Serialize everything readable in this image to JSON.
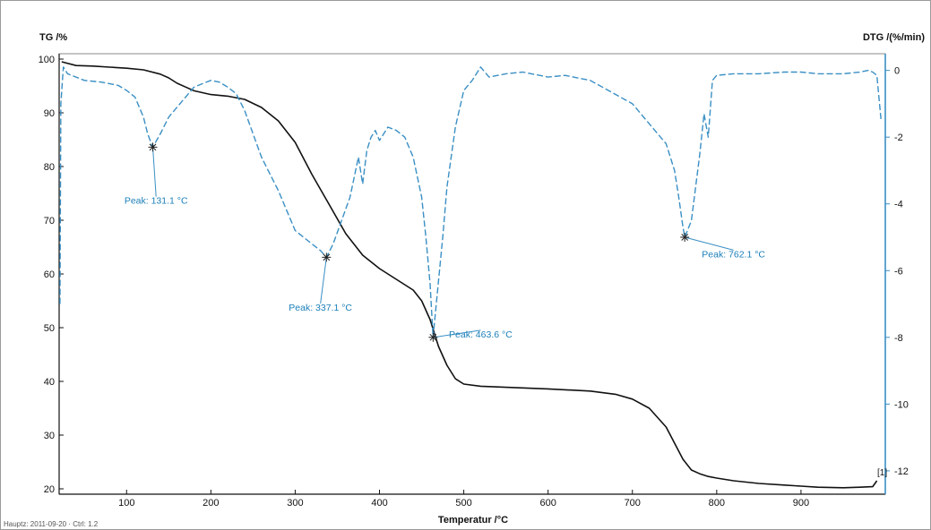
{
  "chart_data": {
    "type": "line",
    "title": "",
    "xlabel": "Temperatur /°C",
    "ylabel_left": "TG /%",
    "ylabel_right": "DTG /(%/min)",
    "xlim": [
      20,
      1000
    ],
    "ylim_left": [
      19,
      101
    ],
    "ylim_right": [
      -12.7,
      0.5
    ],
    "x_ticks": [
      100,
      200,
      300,
      400,
      500,
      600,
      700,
      800,
      900
    ],
    "y_left_ticks": [
      20,
      30,
      40,
      50,
      60,
      70,
      80,
      90,
      100
    ],
    "y_right_ticks": [
      0,
      -2,
      -4,
      -6,
      -8,
      -10,
      -12
    ],
    "grid": false,
    "corner_marker": "[1]",
    "colors": {
      "tg": "#111111",
      "dtg": "#3a8fc4",
      "peak_label": "#1b7fb8"
    },
    "series": [
      {
        "axis": "left",
        "style": "solid",
        "x": [
          23,
          40,
          60,
          80,
          100,
          120,
          140,
          150,
          160,
          170,
          180,
          200,
          220,
          240,
          260,
          280,
          300,
          320,
          340,
          360,
          380,
          400,
          420,
          440,
          450,
          460,
          470,
          480,
          490,
          500,
          520,
          550,
          600,
          650,
          680,
          700,
          720,
          740,
          750,
          760,
          770,
          780,
          790,
          800,
          820,
          850,
          880,
          900,
          920,
          950,
          970,
          985,
          990
        ],
        "values": [
          99.5,
          98.8,
          98.7,
          98.5,
          98.3,
          98.0,
          97.2,
          96.5,
          95.5,
          94.8,
          94.1,
          93.4,
          93.1,
          92.5,
          91.0,
          88.5,
          84.5,
          78.5,
          73.0,
          67.5,
          63.5,
          61.0,
          59.0,
          57.0,
          55.0,
          51.5,
          46.5,
          43.0,
          40.5,
          39.5,
          39.1,
          38.9,
          38.6,
          38.2,
          37.6,
          36.7,
          35.0,
          31.5,
          28.5,
          25.5,
          23.5,
          22.8,
          22.3,
          22.0,
          21.5,
          21.0,
          20.7,
          20.5,
          20.3,
          20.2,
          20.3,
          20.4,
          21.5
        ]
      },
      {
        "axis": "right",
        "style": "dashed",
        "x": [
          21,
          22,
          25,
          30,
          50,
          70,
          90,
          100,
          110,
          120,
          125,
          131.1,
          140,
          150,
          160,
          170,
          180,
          190,
          200,
          210,
          220,
          230,
          240,
          250,
          260,
          270,
          280,
          290,
          300,
          310,
          320,
          330,
          337.1,
          345,
          355,
          365,
          375,
          380,
          385,
          390,
          395,
          400,
          405,
          410,
          420,
          430,
          440,
          450,
          455,
          460,
          463.6,
          470,
          475,
          480,
          490,
          500,
          510,
          520,
          530,
          550,
          570,
          600,
          620,
          650,
          700,
          720,
          740,
          750,
          755,
          760,
          762.1,
          770,
          775,
          780,
          785,
          790,
          795,
          800,
          820,
          850,
          880,
          900,
          920,
          950,
          970,
          980,
          985,
          990,
          995
        ],
        "values": [
          -7.0,
          -1.0,
          0.1,
          -0.1,
          -0.3,
          -0.35,
          -0.45,
          -0.6,
          -0.8,
          -1.4,
          -1.9,
          -2.3,
          -1.9,
          -1.4,
          -1.1,
          -0.8,
          -0.5,
          -0.4,
          -0.3,
          -0.35,
          -0.5,
          -0.7,
          -1.2,
          -1.9,
          -2.6,
          -3.1,
          -3.6,
          -4.2,
          -4.8,
          -5.0,
          -5.2,
          -5.4,
          -5.6,
          -5.2,
          -4.5,
          -3.8,
          -2.6,
          -3.4,
          -2.4,
          -2.0,
          -1.8,
          -2.1,
          -1.9,
          -1.7,
          -1.8,
          -2.0,
          -2.6,
          -3.8,
          -5.0,
          -6.4,
          -8.0,
          -6.3,
          -5.0,
          -3.5,
          -1.7,
          -0.6,
          -0.3,
          0.1,
          -0.2,
          -0.1,
          -0.05,
          -0.2,
          -0.15,
          -0.3,
          -1.0,
          -1.6,
          -2.2,
          -3.0,
          -3.8,
          -4.7,
          -5.0,
          -4.5,
          -3.5,
          -2.5,
          -1.3,
          -2.0,
          -0.3,
          -0.15,
          -0.1,
          -0.1,
          -0.05,
          -0.05,
          -0.1,
          -0.1,
          -0.05,
          0.0,
          -0.05,
          -0.15,
          -1.5
        ]
      }
    ],
    "annotations": [
      {
        "label": "Peak: 131.1 °C",
        "x": 131.1,
        "y": -2.3,
        "label_x": 135,
        "label_y": -4.0
      },
      {
        "label": "Peak: 337.1 °C",
        "x": 337.1,
        "y": -5.6,
        "label_x": 330,
        "label_y": -7.2
      },
      {
        "label": "Peak: 463.6 °C",
        "x": 463.6,
        "y": -8.0,
        "label_x": 520,
        "label_y": -8.0
      },
      {
        "label": "Peak: 762.1 °C",
        "x": 762.1,
        "y": -5.0,
        "label_x": 820,
        "label_y": -5.6
      }
    ]
  },
  "footnote": "Hauptz: 2011-09-20 · Ctrl: 1.2"
}
